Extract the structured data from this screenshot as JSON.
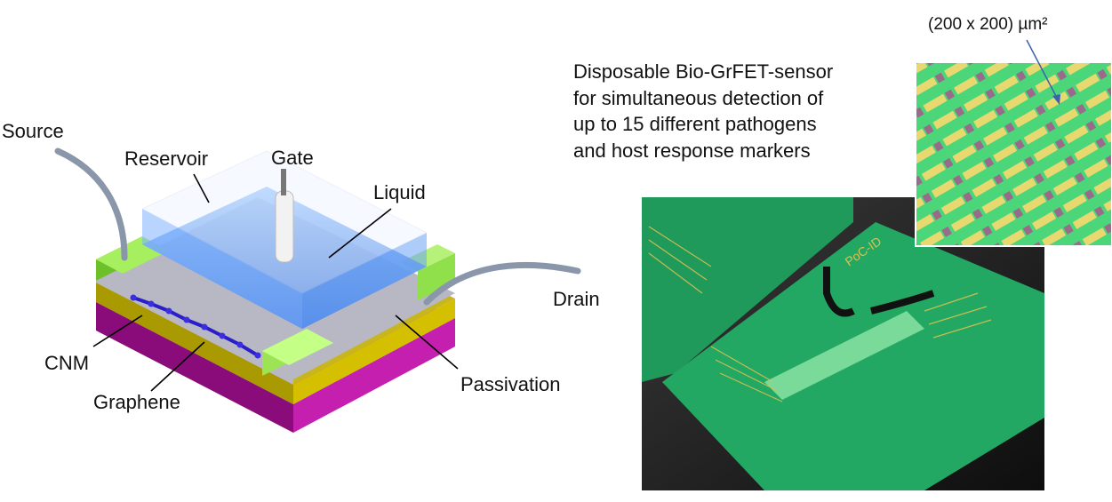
{
  "device_labels": {
    "source": "Source",
    "reservoir": "Reservoir",
    "gate": "Gate",
    "liquid": "Liquid",
    "drain": "Drain",
    "cnm": "CNM",
    "graphene": "Graphene",
    "passivation": "Passivation"
  },
  "sensor_description": [
    "Disposable Bio-GrFET-sensor",
    "for simultaneous detection of",
    "up to 15 different pathogens",
    "and host response markers"
  ],
  "inset_scale": "(200 x 200) µm²",
  "colors": {
    "substrate": "#b0189c",
    "oxide": "#c8b400",
    "contacts": "#8fe04a",
    "liquid": "#4a8ff0",
    "chip_green": "#1f9a5a",
    "arrow": "#3a62b0"
  }
}
